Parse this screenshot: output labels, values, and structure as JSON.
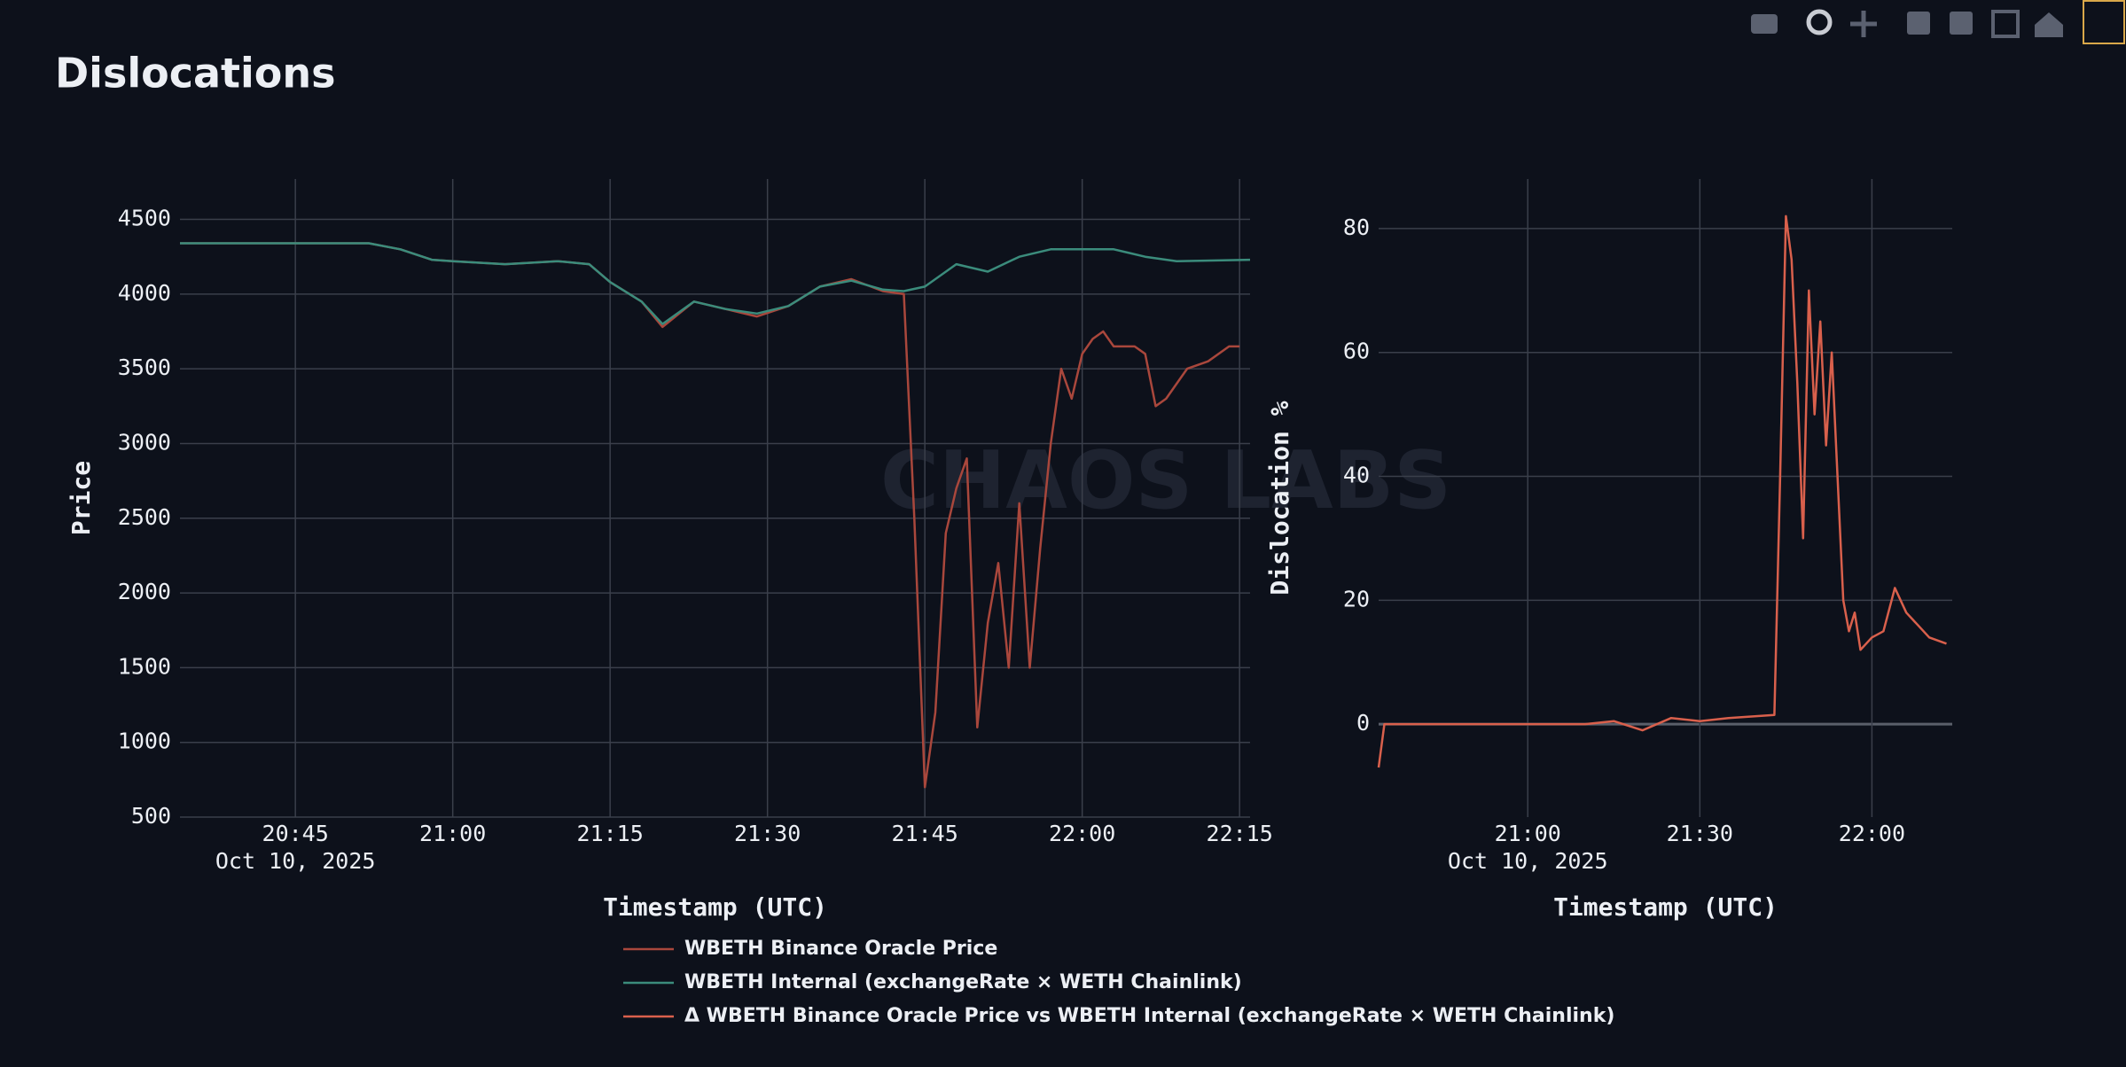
{
  "title": "Dislocations",
  "watermark": "CHAOS LABS",
  "chart_data": [
    {
      "type": "line",
      "xlabel": "Timestamp (UTC)",
      "ylabel": "Price",
      "xlim": [
        "2025-10-10 20:34",
        "2025-10-10 22:16"
      ],
      "ylim": [
        500,
        4770
      ],
      "yticks": [
        500,
        1000,
        1500,
        2000,
        2500,
        3000,
        3500,
        4000,
        4500
      ],
      "xticks": [
        {
          "value": "2025-10-10 20:45",
          "label": "20:45"
        },
        {
          "value": "2025-10-10 21:00",
          "label": "21:00"
        },
        {
          "value": "2025-10-10 21:15",
          "label": "21:15"
        },
        {
          "value": "2025-10-10 21:30",
          "label": "21:30"
        },
        {
          "value": "2025-10-10 21:45",
          "label": "21:45"
        },
        {
          "value": "2025-10-10 22:00",
          "label": "22:00"
        },
        {
          "value": "2025-10-10 22:15",
          "label": "22:15"
        }
      ],
      "xtick_date": "Oct 10, 2025",
      "grid": true,
      "series": [
        {
          "name": "WBETH Binance Oracle Price",
          "color": "#a9473c",
          "x": [
            "2025-10-10 20:34",
            "2025-10-10 20:52",
            "2025-10-10 20:55",
            "2025-10-10 20:58",
            "2025-10-10 21:00",
            "2025-10-10 21:05",
            "2025-10-10 21:10",
            "2025-10-10 21:13",
            "2025-10-10 21:15",
            "2025-10-10 21:18",
            "2025-10-10 21:20",
            "2025-10-10 21:23",
            "2025-10-10 21:26",
            "2025-10-10 21:29",
            "2025-10-10 21:32",
            "2025-10-10 21:35",
            "2025-10-10 21:38",
            "2025-10-10 21:41",
            "2025-10-10 21:43",
            "2025-10-10 21:44",
            "2025-10-10 21:45",
            "2025-10-10 21:46",
            "2025-10-10 21:47",
            "2025-10-10 21:48",
            "2025-10-10 21:49",
            "2025-10-10 21:50",
            "2025-10-10 21:51",
            "2025-10-10 21:52",
            "2025-10-10 21:53",
            "2025-10-10 21:54",
            "2025-10-10 21:55",
            "2025-10-10 21:56",
            "2025-10-10 21:57",
            "2025-10-10 21:58",
            "2025-10-10 21:59",
            "2025-10-10 22:00",
            "2025-10-10 22:01",
            "2025-10-10 22:02",
            "2025-10-10 22:03",
            "2025-10-10 22:05",
            "2025-10-10 22:06",
            "2025-10-10 22:07",
            "2025-10-10 22:08",
            "2025-10-10 22:10",
            "2025-10-10 22:12",
            "2025-10-10 22:14",
            "2025-10-10 22:15"
          ],
          "values": [
            4340,
            4340,
            4300,
            4230,
            4220,
            4200,
            4220,
            4200,
            4080,
            3950,
            3780,
            3950,
            3900,
            3850,
            3920,
            4050,
            4100,
            4020,
            4000,
            2500,
            700,
            1200,
            2400,
            2700,
            2900,
            1100,
            1800,
            2200,
            1500,
            2600,
            1500,
            2300,
            3000,
            3500,
            3300,
            3600,
            3700,
            3750,
            3650,
            3650,
            3600,
            3250,
            3300,
            3500,
            3550,
            3650,
            3650
          ]
        },
        {
          "name": "WBETH Internal (exchangeRate × WETH Chainlink)",
          "color": "#3b8c7c",
          "x": [
            "2025-10-10 20:34",
            "2025-10-10 20:52",
            "2025-10-10 20:55",
            "2025-10-10 20:58",
            "2025-10-10 21:00",
            "2025-10-10 21:05",
            "2025-10-10 21:10",
            "2025-10-10 21:13",
            "2025-10-10 21:15",
            "2025-10-10 21:18",
            "2025-10-10 21:20",
            "2025-10-10 21:23",
            "2025-10-10 21:26",
            "2025-10-10 21:29",
            "2025-10-10 21:32",
            "2025-10-10 21:35",
            "2025-10-10 21:38",
            "2025-10-10 21:41",
            "2025-10-10 21:43",
            "2025-10-10 21:45",
            "2025-10-10 21:48",
            "2025-10-10 21:51",
            "2025-10-10 21:54",
            "2025-10-10 21:57",
            "2025-10-10 22:03",
            "2025-10-10 22:06",
            "2025-10-10 22:09",
            "2025-10-10 22:16"
          ],
          "values": [
            4340,
            4340,
            4300,
            4230,
            4220,
            4200,
            4220,
            4200,
            4080,
            3950,
            3800,
            3950,
            3900,
            3870,
            3920,
            4050,
            4090,
            4030,
            4020,
            4050,
            4200,
            4150,
            4250,
            4300,
            4300,
            4250,
            4220,
            4230
          ]
        }
      ]
    },
    {
      "type": "line",
      "xlabel": "Timestamp (UTC)",
      "ylabel": "Dislocation %",
      "xlim": [
        "2025-10-10 20:34",
        "2025-10-10 22:14"
      ],
      "ylim": [
        -15,
        88
      ],
      "yticks": [
        0,
        20,
        40,
        60,
        80
      ],
      "xticks": [
        {
          "value": "2025-10-10 21:00",
          "label": "21:00"
        },
        {
          "value": "2025-10-10 21:30",
          "label": "21:30"
        },
        {
          "value": "2025-10-10 22:00",
          "label": "22:00"
        }
      ],
      "xtick_date": "Oct 10, 2025",
      "grid": true,
      "series": [
        {
          "name": "Δ WBETH Binance Oracle Price vs WBETH Internal (exchangeRate × WETH Chainlink)",
          "color": "#d9604c",
          "x": [
            "2025-10-10 20:34",
            "2025-10-10 20:35",
            "2025-10-10 21:10",
            "2025-10-10 21:15",
            "2025-10-10 21:20",
            "2025-10-10 21:25",
            "2025-10-10 21:30",
            "2025-10-10 21:35",
            "2025-10-10 21:43",
            "2025-10-10 21:44",
            "2025-10-10 21:45",
            "2025-10-10 21:46",
            "2025-10-10 21:47",
            "2025-10-10 21:48",
            "2025-10-10 21:49",
            "2025-10-10 21:50",
            "2025-10-10 21:51",
            "2025-10-10 21:52",
            "2025-10-10 21:53",
            "2025-10-10 21:54",
            "2025-10-10 21:55",
            "2025-10-10 21:56",
            "2025-10-10 21:57",
            "2025-10-10 21:58",
            "2025-10-10 22:00",
            "2025-10-10 22:02",
            "2025-10-10 22:04",
            "2025-10-10 22:06",
            "2025-10-10 22:08",
            "2025-10-10 22:10",
            "2025-10-10 22:13"
          ],
          "values": [
            -7,
            0,
            0,
            0.5,
            -1,
            1,
            0.5,
            1,
            1.5,
            40,
            82,
            75,
            55,
            30,
            70,
            50,
            65,
            45,
            60,
            40,
            20,
            15,
            18,
            12,
            14,
            15,
            22,
            18,
            16,
            14,
            13
          ]
        }
      ]
    }
  ]
}
